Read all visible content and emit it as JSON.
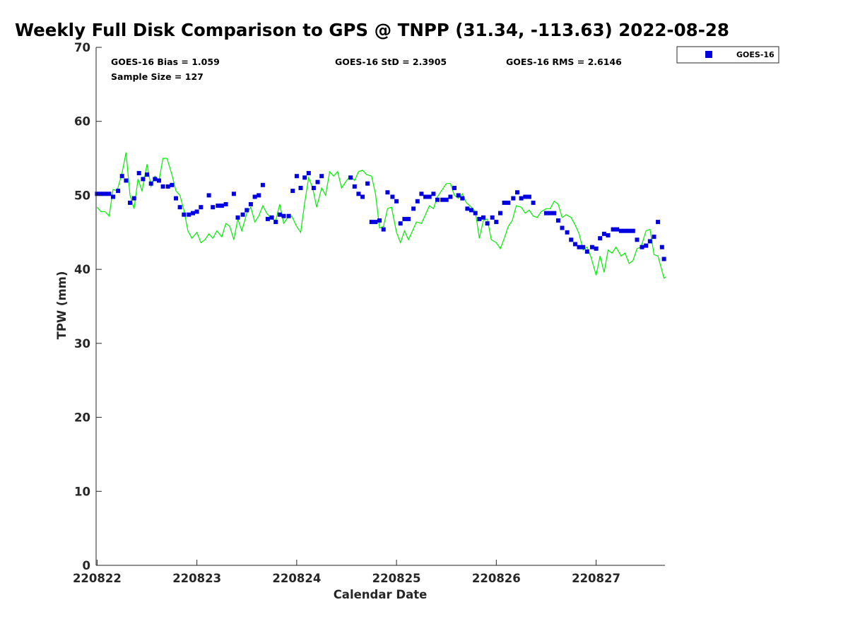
{
  "title": "Weekly Full Disk Comparison to GPS @ TNPP (31.34, -113.63) 2022-08-28",
  "stats": {
    "bias": "GOES-16 Bias = 1.059",
    "std": "GOES-16 StD = 2.3905",
    "rms": "GOES-16 RMS = 2.6146",
    "sample": "Sample Size = 127"
  },
  "colors": {
    "series": "#0000e0",
    "gps": "#00ee00",
    "axis": "#262626"
  },
  "chart_data": {
    "type": "scatter",
    "title": "Weekly Full Disk Comparison to GPS @ TNPP (31.34, -113.63) 2022-08-28",
    "xlabel": "Calendar Date",
    "ylabel": "TPW (mm)",
    "xlim": [
      -0.01,
      5.69
    ],
    "ylim": [
      0,
      70
    ],
    "xticks": [
      0,
      1,
      2,
      3,
      4,
      5
    ],
    "xtick_labels": [
      "220822",
      "220823",
      "220824",
      "220825",
      "220826",
      "220827"
    ],
    "yticks": [
      0,
      10,
      20,
      30,
      40,
      50,
      60,
      70
    ],
    "legend": {
      "placement": "top-right, outside",
      "entries": [
        "GOES-16"
      ]
    },
    "series": [
      {
        "name": "GOES-16",
        "marker": "square",
        "color": "#0000e0",
        "points": [
          [
            0.0,
            50.2
          ],
          [
            0.04,
            50.2
          ],
          [
            0.08,
            50.2
          ],
          [
            0.12,
            50.2
          ],
          [
            0.16,
            49.8
          ],
          [
            0.21,
            50.6
          ],
          [
            0.25,
            52.6
          ],
          [
            0.29,
            52.0
          ],
          [
            0.33,
            49.0
          ],
          [
            0.37,
            49.6
          ],
          [
            0.42,
            53.0
          ],
          [
            0.46,
            52.2
          ],
          [
            0.5,
            52.8
          ],
          [
            0.54,
            51.6
          ],
          [
            0.58,
            52.2
          ],
          [
            0.62,
            52.0
          ],
          [
            0.66,
            51.2
          ],
          [
            0.71,
            51.2
          ],
          [
            0.75,
            51.4
          ],
          [
            0.79,
            49.6
          ],
          [
            0.83,
            48.4
          ],
          [
            0.87,
            47.4
          ],
          [
            0.92,
            47.4
          ],
          [
            0.96,
            47.6
          ],
          [
            1.0,
            47.8
          ],
          [
            1.04,
            48.4
          ],
          [
            1.12,
            50.0
          ],
          [
            1.16,
            48.4
          ],
          [
            1.21,
            48.6
          ],
          [
            1.25,
            48.6
          ],
          [
            1.29,
            48.8
          ],
          [
            1.37,
            50.2
          ],
          [
            1.41,
            47.0
          ],
          [
            1.46,
            47.4
          ],
          [
            1.5,
            48.0
          ],
          [
            1.54,
            48.8
          ],
          [
            1.58,
            49.8
          ],
          [
            1.62,
            50.0
          ],
          [
            1.66,
            51.4
          ],
          [
            1.71,
            46.8
          ],
          [
            1.75,
            47.0
          ],
          [
            1.79,
            46.4
          ],
          [
            1.83,
            47.4
          ],
          [
            1.87,
            47.2
          ],
          [
            1.92,
            47.2
          ],
          [
            1.96,
            50.6
          ],
          [
            2.0,
            52.6
          ],
          [
            2.04,
            51.0
          ],
          [
            2.08,
            52.4
          ],
          [
            2.12,
            53.0
          ],
          [
            2.17,
            51.0
          ],
          [
            2.21,
            51.8
          ],
          [
            2.25,
            52.6
          ],
          [
            2.54,
            52.4
          ],
          [
            2.58,
            51.2
          ],
          [
            2.62,
            50.2
          ],
          [
            2.66,
            49.8
          ],
          [
            2.71,
            51.6
          ],
          [
            2.75,
            46.4
          ],
          [
            2.79,
            46.4
          ],
          [
            2.83,
            46.6
          ],
          [
            2.87,
            45.4
          ],
          [
            2.91,
            50.4
          ],
          [
            2.96,
            49.8
          ],
          [
            3.0,
            49.2
          ],
          [
            3.04,
            46.2
          ],
          [
            3.08,
            46.8
          ],
          [
            3.12,
            46.8
          ],
          [
            3.17,
            48.2
          ],
          [
            3.21,
            49.2
          ],
          [
            3.25,
            50.2
          ],
          [
            3.29,
            49.8
          ],
          [
            3.33,
            49.8
          ],
          [
            3.37,
            50.2
          ],
          [
            3.41,
            49.4
          ],
          [
            3.46,
            49.4
          ],
          [
            3.5,
            49.4
          ],
          [
            3.54,
            49.8
          ],
          [
            3.58,
            51.0
          ],
          [
            3.62,
            50.0
          ],
          [
            3.66,
            49.6
          ],
          [
            3.71,
            48.2
          ],
          [
            3.75,
            48.0
          ],
          [
            3.79,
            47.6
          ],
          [
            3.83,
            46.8
          ],
          [
            3.87,
            47.0
          ],
          [
            3.91,
            46.2
          ],
          [
            3.96,
            47.0
          ],
          [
            4.0,
            46.4
          ],
          [
            4.04,
            47.6
          ],
          [
            4.08,
            49.0
          ],
          [
            4.12,
            49.0
          ],
          [
            4.17,
            49.6
          ],
          [
            4.21,
            50.4
          ],
          [
            4.25,
            49.6
          ],
          [
            4.29,
            49.8
          ],
          [
            4.33,
            49.8
          ],
          [
            4.37,
            49.0
          ],
          [
            4.5,
            47.6
          ],
          [
            4.54,
            47.6
          ],
          [
            4.58,
            47.6
          ],
          [
            4.62,
            46.6
          ],
          [
            4.66,
            45.6
          ],
          [
            4.71,
            45.0
          ],
          [
            4.75,
            44.0
          ],
          [
            4.79,
            43.4
          ],
          [
            4.83,
            43.0
          ],
          [
            4.87,
            43.0
          ],
          [
            4.91,
            42.4
          ],
          [
            4.96,
            43.0
          ],
          [
            5.0,
            42.8
          ],
          [
            5.04,
            44.2
          ],
          [
            5.08,
            44.8
          ],
          [
            5.12,
            44.6
          ],
          [
            5.17,
            45.4
          ],
          [
            5.21,
            45.4
          ],
          [
            5.25,
            45.2
          ],
          [
            5.29,
            45.2
          ],
          [
            5.33,
            45.2
          ],
          [
            5.37,
            45.2
          ],
          [
            5.41,
            44.0
          ],
          [
            5.46,
            43.0
          ],
          [
            5.5,
            43.2
          ],
          [
            5.54,
            43.8
          ],
          [
            5.58,
            44.4
          ],
          [
            5.62,
            46.4
          ],
          [
            5.66,
            43.0
          ],
          [
            5.68,
            41.4
          ]
        ]
      },
      {
        "marker": "line",
        "color": "#00ee00",
        "points": [
          [
            0.0,
            48.4
          ],
          [
            0.04,
            47.8
          ],
          [
            0.08,
            47.8
          ],
          [
            0.12,
            47.2
          ],
          [
            0.16,
            50.8
          ],
          [
            0.2,
            50.6
          ],
          [
            0.25,
            53.0
          ],
          [
            0.29,
            55.8
          ],
          [
            0.33,
            50.0
          ],
          [
            0.37,
            48.2
          ],
          [
            0.41,
            52.2
          ],
          [
            0.45,
            50.6
          ],
          [
            0.5,
            54.2
          ],
          [
            0.54,
            51.2
          ],
          [
            0.58,
            52.6
          ],
          [
            0.62,
            52.0
          ],
          [
            0.66,
            55.0
          ],
          [
            0.7,
            55.0
          ],
          [
            0.75,
            52.8
          ],
          [
            0.79,
            50.6
          ],
          [
            0.83,
            50.0
          ],
          [
            0.87,
            48.0
          ],
          [
            0.91,
            45.2
          ],
          [
            0.95,
            44.2
          ],
          [
            1.0,
            45.0
          ],
          [
            1.04,
            43.6
          ],
          [
            1.08,
            44.0
          ],
          [
            1.12,
            44.8
          ],
          [
            1.16,
            44.2
          ],
          [
            1.2,
            45.2
          ],
          [
            1.25,
            44.4
          ],
          [
            1.29,
            46.2
          ],
          [
            1.33,
            45.8
          ],
          [
            1.37,
            44.0
          ],
          [
            1.41,
            46.8
          ],
          [
            1.45,
            45.2
          ],
          [
            1.5,
            47.6
          ],
          [
            1.54,
            48.4
          ],
          [
            1.58,
            46.4
          ],
          [
            1.62,
            47.2
          ],
          [
            1.66,
            48.6
          ],
          [
            1.7,
            47.6
          ],
          [
            1.75,
            46.8
          ],
          [
            1.79,
            46.6
          ],
          [
            1.83,
            48.8
          ],
          [
            1.87,
            46.2
          ],
          [
            1.91,
            47.0
          ],
          [
            1.95,
            47.2
          ],
          [
            2.0,
            45.8
          ],
          [
            2.04,
            45.0
          ],
          [
            2.08,
            49.0
          ],
          [
            2.12,
            52.4
          ],
          [
            2.16,
            51.0
          ],
          [
            2.2,
            48.4
          ],
          [
            2.25,
            51.0
          ],
          [
            2.29,
            50.0
          ],
          [
            2.33,
            53.2
          ],
          [
            2.37,
            52.6
          ],
          [
            2.41,
            53.2
          ],
          [
            2.45,
            51.0
          ],
          [
            2.5,
            52.0
          ],
          [
            2.54,
            52.6
          ],
          [
            2.58,
            52.0
          ],
          [
            2.62,
            53.2
          ],
          [
            2.66,
            53.4
          ],
          [
            2.7,
            52.8
          ],
          [
            2.75,
            52.6
          ],
          [
            2.79,
            50.2
          ],
          [
            2.83,
            45.6
          ],
          [
            2.87,
            45.8
          ],
          [
            2.91,
            48.2
          ],
          [
            2.95,
            48.4
          ],
          [
            3.0,
            45.0
          ],
          [
            3.04,
            43.6
          ],
          [
            3.08,
            45.2
          ],
          [
            3.12,
            44.0
          ],
          [
            3.16,
            45.2
          ],
          [
            3.2,
            46.4
          ],
          [
            3.25,
            46.2
          ],
          [
            3.29,
            47.4
          ],
          [
            3.33,
            48.6
          ],
          [
            3.37,
            48.2
          ],
          [
            3.41,
            49.8
          ],
          [
            3.45,
            50.6
          ],
          [
            3.5,
            51.6
          ],
          [
            3.54,
            51.6
          ],
          [
            3.58,
            50.0
          ],
          [
            3.62,
            49.6
          ],
          [
            3.66,
            50.2
          ],
          [
            3.7,
            49.0
          ],
          [
            3.75,
            48.4
          ],
          [
            3.79,
            47.8
          ],
          [
            3.83,
            44.2
          ],
          [
            3.87,
            46.6
          ],
          [
            3.91,
            46.8
          ],
          [
            3.95,
            44.0
          ],
          [
            4.0,
            43.6
          ],
          [
            4.04,
            42.8
          ],
          [
            4.08,
            44.2
          ],
          [
            4.12,
            45.8
          ],
          [
            4.16,
            46.6
          ],
          [
            4.2,
            48.6
          ],
          [
            4.25,
            48.4
          ],
          [
            4.29,
            47.6
          ],
          [
            4.33,
            48.0
          ],
          [
            4.37,
            47.2
          ],
          [
            4.41,
            47.0
          ],
          [
            4.45,
            47.8
          ],
          [
            4.5,
            48.2
          ],
          [
            4.54,
            48.2
          ],
          [
            4.58,
            49.2
          ],
          [
            4.62,
            48.8
          ],
          [
            4.66,
            47.0
          ],
          [
            4.7,
            47.4
          ],
          [
            4.75,
            47.0
          ],
          [
            4.79,
            46.0
          ],
          [
            4.83,
            44.8
          ],
          [
            4.87,
            42.6
          ],
          [
            4.91,
            43.0
          ],
          [
            4.95,
            41.6
          ],
          [
            5.0,
            39.2
          ],
          [
            5.04,
            41.8
          ],
          [
            5.08,
            39.6
          ],
          [
            5.12,
            42.6
          ],
          [
            5.16,
            42.2
          ],
          [
            5.2,
            43.0
          ],
          [
            5.25,
            41.8
          ],
          [
            5.29,
            42.2
          ],
          [
            5.33,
            40.8
          ],
          [
            5.37,
            41.2
          ],
          [
            5.41,
            42.8
          ],
          [
            5.45,
            43.0
          ],
          [
            5.5,
            45.2
          ],
          [
            5.54,
            45.4
          ],
          [
            5.58,
            42.0
          ],
          [
            5.62,
            41.8
          ],
          [
            5.66,
            39.8
          ],
          [
            5.68,
            38.8
          ],
          [
            5.7,
            39.0
          ]
        ]
      }
    ]
  }
}
